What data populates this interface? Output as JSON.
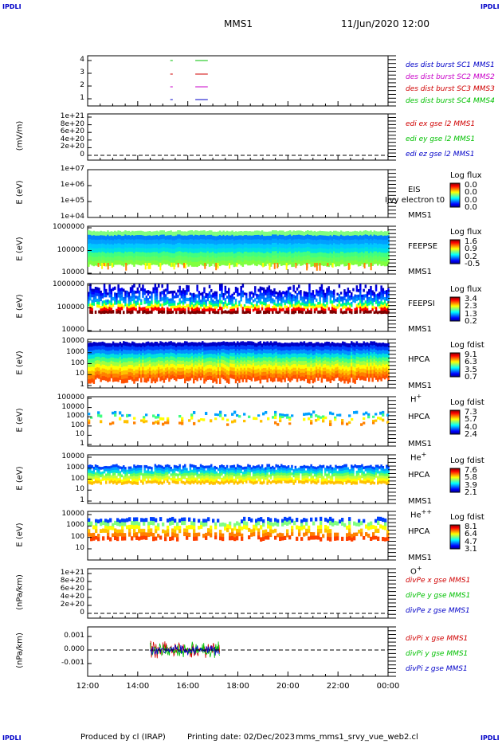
{
  "header": {
    "corner_tl": "IPDLI",
    "corner_tr": "IPDLI",
    "corner_bl": "IPDLI",
    "corner_br": "IPDLI",
    "spacecraft": "MMS1",
    "datetime": "11/Jun/2020 12:00"
  },
  "footer": {
    "produced_by": "Produced by cl (IRAP)",
    "printing_date": "Printing date: 02/Dec/2023",
    "filename": "mms_mms1_srvy_vue_web2.cl"
  },
  "chart_data": {
    "type": "heatmap",
    "x_ticks": [
      "12:00",
      "14:00",
      "16:00",
      "18:00",
      "20:00",
      "22:00",
      "00:00"
    ],
    "panels": [
      {
        "id": "burst",
        "ylabel": "",
        "yticks": [
          "4",
          "3",
          "2",
          "1"
        ],
        "legend": [
          {
            "text": "des dist burst SC1 MMS1",
            "color": "#0000c8"
          },
          {
            "text": "des dist burst SC2 MMS2",
            "color": "#c800c8"
          },
          {
            "text": "des dist burst SC3 MMS3",
            "color": "#d00000"
          },
          {
            "text": "des dist burst SC4 MMS4",
            "color": "#00c000"
          }
        ]
      },
      {
        "id": "edi",
        "ylabel": "(mV/m)",
        "yticks": [
          "1e+21",
          "8e+20",
          "6e+20",
          "4e+20",
          "2e+20",
          "0"
        ],
        "legend": [
          {
            "text": "edi ex gse l2 MMS1",
            "color": "#d00000"
          },
          {
            "text": "edi ey gse l2 MMS1",
            "color": "#00c000"
          },
          {
            "text": "edi ez gse l2 MMS1",
            "color": "#0000c8"
          }
        ]
      },
      {
        "id": "eis",
        "ylabel": "E (eV)",
        "yticks": [
          "1e+07",
          "1e+06",
          "1e+05",
          "1e+04"
        ],
        "inst": [
          "EIS",
          "MMS1"
        ],
        "overlay": "Ijvy electron t0",
        "cb_title": "Log flux",
        "cb_values": [
          "0.0",
          "0.0",
          "0.0",
          "0.0"
        ]
      },
      {
        "id": "feepse",
        "ylabel": "E (eV)",
        "yticks": [
          "1000000",
          "100000",
          "10000"
        ],
        "inst": [
          "FEEPSE",
          "MMS1"
        ],
        "cb_title": "Log flux",
        "cb_values": [
          "1.6",
          "0.9",
          "0.2",
          "-0.5"
        ]
      },
      {
        "id": "feepsi",
        "ylabel": "E (eV)",
        "yticks": [
          "1000000",
          "100000",
          "10000"
        ],
        "inst": [
          "FEEPSI",
          "MMS1"
        ],
        "cb_title": "Log flux",
        "cb_values": [
          "3.4",
          "2.3",
          "1.3",
          "0.2"
        ]
      },
      {
        "id": "hpca_h",
        "ylabel": "E (eV)",
        "yticks": [
          "10000",
          "1000",
          "100",
          "10",
          "1"
        ],
        "inst": [
          "HPCA",
          "MMS1"
        ],
        "species": "H",
        "charge": "+",
        "cb_title": "Log fdist",
        "cb_values": [
          "9.1",
          "6.3",
          "3.5",
          "0.7"
        ]
      },
      {
        "id": "hpca_he",
        "ylabel": "E (eV)",
        "yticks": [
          "100000",
          "10000",
          "1000",
          "100",
          "10",
          "1"
        ],
        "inst": [
          "HPCA",
          "MMS1"
        ],
        "species": "He",
        "charge": "+",
        "cb_title": "Log fdist",
        "cb_values": [
          "7.3",
          "5.7",
          "4.0",
          "2.4"
        ]
      },
      {
        "id": "hpca_hepp",
        "ylabel": "E (eV)",
        "yticks": [
          "10000",
          "1000",
          "100",
          "10",
          "1"
        ],
        "inst": [
          "HPCA",
          "MMS1"
        ],
        "species": "He",
        "charge": "++",
        "cb_title": "Log fdist",
        "cb_values": [
          "7.6",
          "5.8",
          "3.9",
          "2.1"
        ]
      },
      {
        "id": "hpca_o",
        "ylabel": "E (eV)",
        "yticks": [
          "10000",
          "1000",
          "100",
          "10"
        ],
        "inst": [
          "HPCA",
          "MMS1"
        ],
        "species": "O",
        "charge": "+",
        "cb_title": "Log fdist",
        "cb_values": [
          "8.1",
          "6.4",
          "4.7",
          "3.1"
        ]
      },
      {
        "id": "divpe",
        "ylabel": "(nPa/km)",
        "yticks": [
          "1e+21",
          "8e+20",
          "6e+20",
          "4e+20",
          "2e+20",
          "0"
        ],
        "legend": [
          {
            "text": "divPe x gse MMS1",
            "color": "#d00000"
          },
          {
            "text": "divPe y gse MMS1",
            "color": "#00c000"
          },
          {
            "text": "divPe z gse MMS1",
            "color": "#0000c8"
          }
        ]
      },
      {
        "id": "divpi",
        "ylabel": "(nPa/km)",
        "yticks": [
          "0.001",
          "0.000",
          "-0.001"
        ],
        "legend": [
          {
            "text": "divPi x gse MMS1",
            "color": "#d00000"
          },
          {
            "text": "divPi y gse MMS1",
            "color": "#00c000"
          },
          {
            "text": "divPi z gse MMS1",
            "color": "#0000c8"
          }
        ]
      }
    ]
  }
}
